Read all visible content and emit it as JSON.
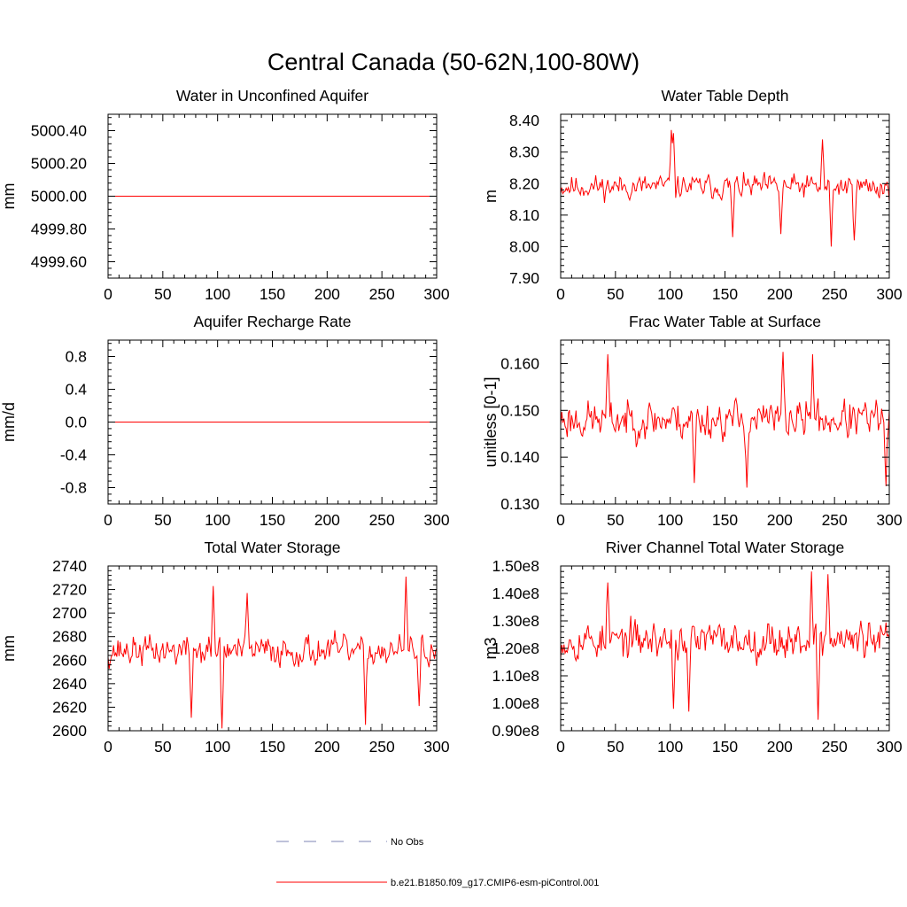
{
  "figure": {
    "title": "Central Canada (50-62N,100-80W)"
  },
  "legend": {
    "items": [
      {
        "label": "No Obs",
        "color": "#7d86b5",
        "dash": true
      },
      {
        "label": "b.e21.B1850.f09_g17.CMIP6-esm-piControl.001",
        "color": "#ff0000",
        "dash": false
      }
    ]
  },
  "chart_data": [
    {
      "type": "line",
      "title": "Water in Unconfined Aquifer",
      "xlabel": "",
      "ylabel": "mm",
      "xlim": [
        0,
        300
      ],
      "ylim": [
        4999.5,
        5000.5
      ],
      "xticks": [
        0,
        50,
        100,
        150,
        200,
        250,
        300
      ],
      "yticks": [
        4999.6,
        4999.8,
        5000.0,
        5000.2,
        5000.4
      ],
      "ytick_labels": [
        "4999.60",
        "4999.80",
        "5000.00",
        "5000.20",
        "5000.40"
      ],
      "series": [
        {
          "name": "b.e21.B1850.f09_g17.CMIP6-esm-piControl.001",
          "color": "#ff0000",
          "style": "constant",
          "value": 5000.0
        }
      ]
    },
    {
      "type": "line",
      "title": "Water Table Depth",
      "xlabel": "",
      "ylabel": "m",
      "xlim": [
        0,
        300
      ],
      "ylim": [
        7.9,
        8.42
      ],
      "xticks": [
        0,
        50,
        100,
        150,
        200,
        250,
        300
      ],
      "yticks": [
        7.9,
        8.0,
        8.1,
        8.2,
        8.3,
        8.4
      ],
      "ytick_labels": [
        "7.90",
        "8.00",
        "8.10",
        "8.20",
        "8.30",
        "8.40"
      ],
      "series": [
        {
          "name": "b.e21.B1850.f09_g17.CMIP6-esm-piControl.001",
          "color": "#ff0000",
          "style": "noisy",
          "n": 300,
          "mean": 8.19,
          "amp": 0.05,
          "seed": 11,
          "events": [
            [
              101,
              8.37
            ],
            [
              103,
              8.36
            ],
            [
              157,
              8.03
            ],
            [
              201,
              8.04
            ],
            [
              239,
              8.34
            ],
            [
              247,
              8.0
            ],
            [
              268,
              8.02
            ]
          ]
        }
      ]
    },
    {
      "type": "line",
      "title": "Aquifer Recharge Rate",
      "xlabel": "",
      "ylabel": "mm/d",
      "xlim": [
        0,
        300
      ],
      "ylim": [
        -1.0,
        1.0
      ],
      "xticks": [
        0,
        50,
        100,
        150,
        200,
        250,
        300
      ],
      "yticks": [
        -0.8,
        -0.4,
        0.0,
        0.4,
        0.8
      ],
      "ytick_labels": [
        "-0.8",
        "-0.4",
        "0.0",
        "0.4",
        "0.8"
      ],
      "series": [
        {
          "name": "b.e21.B1850.f09_g17.CMIP6-esm-piControl.001",
          "color": "#ff0000",
          "style": "constant",
          "value": 0.0
        }
      ]
    },
    {
      "type": "line",
      "title": "Frac Water Table at Surface",
      "xlabel": "",
      "ylabel": "unitless [0-1]",
      "xlim": [
        0,
        300
      ],
      "ylim": [
        0.13,
        0.165
      ],
      "xticks": [
        0,
        50,
        100,
        150,
        200,
        250,
        300
      ],
      "yticks": [
        0.13,
        0.14,
        0.15,
        0.16
      ],
      "ytick_labels": [
        "0.130",
        "0.140",
        "0.150",
        "0.160"
      ],
      "series": [
        {
          "name": "b.e21.B1850.f09_g17.CMIP6-esm-piControl.001",
          "color": "#ff0000",
          "style": "noisy",
          "n": 300,
          "mean": 0.148,
          "amp": 0.0055,
          "seed": 23,
          "events": [
            [
              43,
              0.162
            ],
            [
              122,
              0.1345
            ],
            [
              170,
              0.1335
            ],
            [
              203,
              0.1625
            ],
            [
              230,
              0.162
            ],
            [
              297,
              0.1338
            ]
          ]
        }
      ]
    },
    {
      "type": "line",
      "title": "Total Water Storage",
      "xlabel": "",
      "ylabel": "mm",
      "xlim": [
        0,
        300
      ],
      "ylim": [
        2600,
        2740
      ],
      "xticks": [
        0,
        50,
        100,
        150,
        200,
        250,
        300
      ],
      "yticks": [
        2600,
        2620,
        2640,
        2660,
        2680,
        2700,
        2720,
        2740
      ],
      "ytick_labels": [
        "2600",
        "2620",
        "2640",
        "2660",
        "2680",
        "2700",
        "2720",
        "2740"
      ],
      "series": [
        {
          "name": "b.e21.B1850.f09_g17.CMIP6-esm-piControl.001",
          "color": "#ff0000",
          "style": "noisy",
          "n": 300,
          "mean": 2668,
          "amp": 17,
          "seed": 37,
          "events": [
            [
              76,
              2611
            ],
            [
              96,
              2723
            ],
            [
              104,
              2602
            ],
            [
              127,
              2717
            ],
            [
              235,
              2605
            ],
            [
              272,
              2731
            ],
            [
              284,
              2621
            ]
          ]
        }
      ]
    },
    {
      "type": "line",
      "title": "River Channel Total Water Storage",
      "xlabel": "",
      "ylabel": "m3",
      "xlim": [
        0,
        300
      ],
      "ylim": [
        90000000.0,
        150000000.0
      ],
      "xticks": [
        0,
        50,
        100,
        150,
        200,
        250,
        300
      ],
      "yticks": [
        90000000.0,
        100000000.0,
        110000000.0,
        120000000.0,
        130000000.0,
        140000000.0,
        150000000.0
      ],
      "ytick_labels": [
        "0.90e8",
        "1.00e8",
        "1.10e8",
        "1.20e8",
        "1.30e8",
        "1.40e8",
        "1.50e8"
      ],
      "series": [
        {
          "name": "b.e21.B1850.f09_g17.CMIP6-esm-piControl.001",
          "color": "#ff0000",
          "style": "noisy",
          "n": 300,
          "mean": 123000000.0,
          "amp": 9000000.0,
          "seed": 53,
          "events": [
            [
              43,
              144000000.0
            ],
            [
              103,
              98000000.0
            ],
            [
              117,
              97000000.0
            ],
            [
              229,
              148000000.0
            ],
            [
              235,
              94000000.0
            ],
            [
              244,
              147000000.0
            ]
          ]
        }
      ]
    }
  ]
}
